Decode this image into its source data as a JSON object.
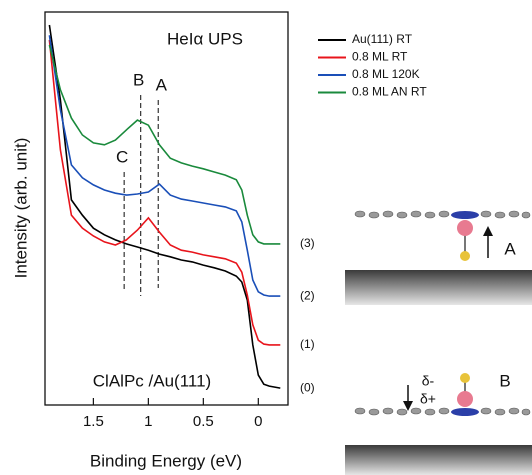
{
  "chart_data": {
    "type": "line",
    "title": "HeIα UPS",
    "subtitle": "ClAlPc /Au(111)",
    "x_label": "Binding Energy (eV)",
    "y_label": "Intensity (arb. unit)",
    "x": [
      1.9,
      1.8,
      1.7,
      1.6,
      1.5,
      1.4,
      1.3,
      1.2,
      1.1,
      1.0,
      0.9,
      0.8,
      0.7,
      0.6,
      0.5,
      0.4,
      0.3,
      0.2,
      0.15,
      0.1,
      0.05,
      0,
      -0.05,
      -0.1,
      -0.2
    ],
    "xlim": [
      1.94,
      -0.27
    ],
    "xticks": [
      1.5,
      1,
      0.5,
      0
    ],
    "ylim": [
      0,
      100
    ],
    "legend": "right",
    "series": [
      {
        "name": "Au(111) RT",
        "color": "#000000",
        "tag": "(0)",
        "values": [
          96.7,
          77.6,
          52.2,
          48.3,
          45.0,
          43.3,
          42.0,
          41.0,
          40.2,
          39.4,
          38.4,
          37.7,
          36.9,
          36.4,
          35.6,
          34.9,
          34.1,
          32.8,
          31.3,
          26.7,
          15.3,
          7.6,
          5.3,
          4.8,
          4.3
        ]
      },
      {
        "name": "0.8 ML RT",
        "color": "#e8141b",
        "tag": "(1)",
        "values": [
          92.9,
          64.9,
          48.3,
          45.0,
          43.0,
          41.5,
          40.7,
          42.0,
          44.5,
          47.6,
          44.0,
          40.7,
          39.4,
          38.9,
          38.2,
          37.7,
          37.2,
          36.1,
          33.8,
          28.0,
          20.4,
          16.5,
          15.5,
          15.3,
          15.3
        ]
      },
      {
        "name": "0.8 ML 120K",
        "color": "#1a4fb8",
        "tag": "(2)",
        "values": [
          94.1,
          75.1,
          61.1,
          57.8,
          56.0,
          54.7,
          53.9,
          53.4,
          53.7,
          54.2,
          56.2,
          53.4,
          52.4,
          51.9,
          51.4,
          50.9,
          50.4,
          49.4,
          46.6,
          39.4,
          31.8,
          28.8,
          28.0,
          27.7,
          27.7
        ]
      },
      {
        "name": "0.8 ML AN RT",
        "color": "#1a8a3c",
        "tag": "(3)",
        "values": [
          91.6,
          80.2,
          73.0,
          68.7,
          66.7,
          66.2,
          67.4,
          70.0,
          72.5,
          71.2,
          66.2,
          62.8,
          61.6,
          60.8,
          60.1,
          59.3,
          58.5,
          57.3,
          54.7,
          48.3,
          43.3,
          41.5,
          41.0,
          41.0,
          41.0
        ]
      }
    ],
    "peak_markers": [
      {
        "label": "C",
        "x": 1.22
      },
      {
        "label": "B",
        "x": 1.07
      },
      {
        "label": "A",
        "x": 0.91
      }
    ]
  },
  "diagrams": [
    {
      "label": "A"
    },
    {
      "label": "B",
      "charges": [
        "δ-",
        "δ+"
      ]
    }
  ]
}
